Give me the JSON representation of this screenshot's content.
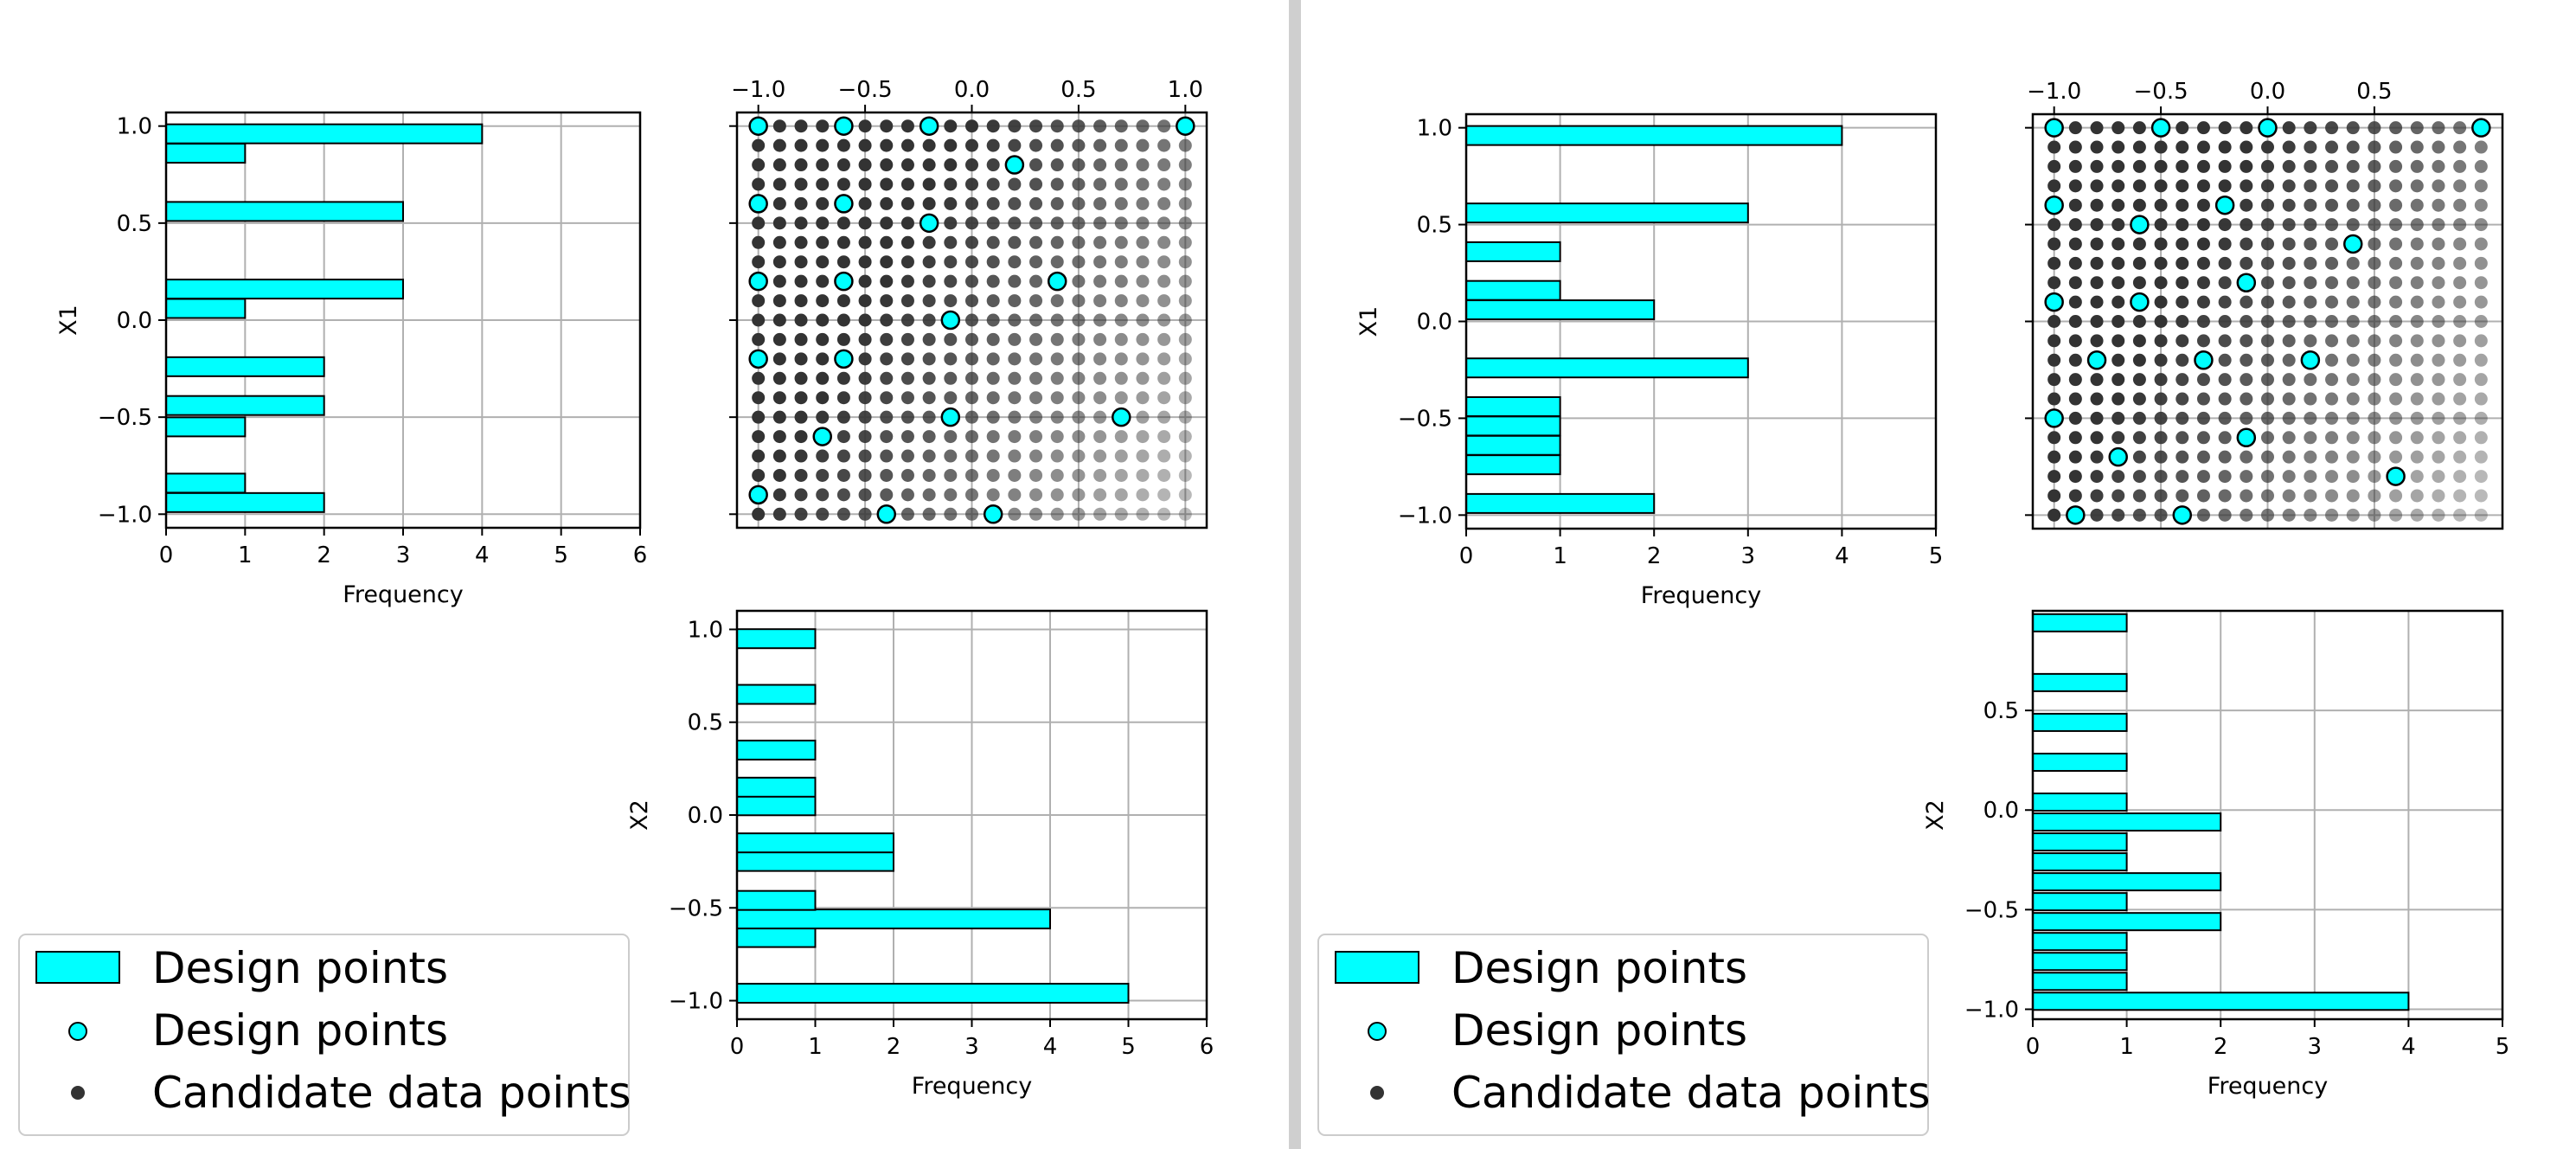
{
  "colors": {
    "design": "#00ffff",
    "candidate": "#333333",
    "grid": "#b0b0b0",
    "divider": "#cfcfcf"
  },
  "chart_data": [
    {
      "type": "bar",
      "orientation": "horizontal",
      "xlabel": "Frequency",
      "ylabel": "X1",
      "xlim": [
        0,
        6
      ],
      "ylim": [
        -1.07,
        1.07
      ],
      "xticks": [
        "0",
        "1",
        "2",
        "3",
        "4",
        "5",
        "6"
      ],
      "yticks": [
        "−1.0",
        "−0.5",
        "0.0",
        "0.5",
        "1.0"
      ],
      "bins": [
        {
          "y": -0.94,
          "value": 2
        },
        {
          "y": -0.84,
          "value": 1
        },
        {
          "y": -0.55,
          "value": 1
        },
        {
          "y": -0.44,
          "value": 2
        },
        {
          "y": -0.24,
          "value": 2
        },
        {
          "y": 0.06,
          "value": 1
        },
        {
          "y": 0.16,
          "value": 3
        },
        {
          "y": 0.56,
          "value": 3
        },
        {
          "y": 0.86,
          "value": 1
        },
        {
          "y": 0.96,
          "value": 4
        }
      ]
    },
    {
      "type": "scatter",
      "xticks": [
        "−1.0",
        "−0.5",
        "0.0",
        "0.5",
        "1.0"
      ],
      "xlim": [
        -1.1,
        1.1
      ],
      "ylim": [
        -1.07,
        1.07
      ],
      "design_points": [
        {
          "x": -1.0,
          "y": 1.0
        },
        {
          "x": -0.6,
          "y": 1.0
        },
        {
          "x": -0.2,
          "y": 1.0
        },
        {
          "x": 1.0,
          "y": 1.0
        },
        {
          "x": 0.2,
          "y": 0.8
        },
        {
          "x": -1.0,
          "y": 0.6
        },
        {
          "x": -0.6,
          "y": 0.6
        },
        {
          "x": -0.2,
          "y": 0.5
        },
        {
          "x": -1.0,
          "y": 0.2
        },
        {
          "x": -0.6,
          "y": 0.2
        },
        {
          "x": 0.4,
          "y": 0.2
        },
        {
          "x": -0.1,
          "y": 0.0
        },
        {
          "x": -1.0,
          "y": -0.2
        },
        {
          "x": -0.6,
          "y": -0.2
        },
        {
          "x": -0.1,
          "y": -0.5
        },
        {
          "x": 0.7,
          "y": -0.5
        },
        {
          "x": -0.7,
          "y": -0.6
        },
        {
          "x": -1.0,
          "y": -0.9
        },
        {
          "x": -0.4,
          "y": -1.0
        },
        {
          "x": 0.1,
          "y": -1.0
        }
      ],
      "candidate_grid": {
        "x_from": -1.0,
        "x_to": 1.0,
        "y_from": -1.0,
        "y_to": 1.0,
        "step": 0.1
      }
    },
    {
      "type": "bar",
      "orientation": "horizontal",
      "xlabel": "Frequency",
      "ylabel": "X2",
      "xlim": [
        0,
        6
      ],
      "ylim": [
        -1.1,
        1.1
      ],
      "xticks": [
        "0",
        "1",
        "2",
        "3",
        "4",
        "5",
        "6"
      ],
      "yticks": [
        "−1.0",
        "−0.5",
        "0.0",
        "0.5",
        "1.0"
      ],
      "bins": [
        {
          "y": -0.96,
          "value": 5
        },
        {
          "y": -0.66,
          "value": 1
        },
        {
          "y": -0.56,
          "value": 4
        },
        {
          "y": -0.46,
          "value": 1
        },
        {
          "y": -0.25,
          "value": 2
        },
        {
          "y": -0.15,
          "value": 2
        },
        {
          "y": 0.05,
          "value": 1
        },
        {
          "y": 0.15,
          "value": 1
        },
        {
          "y": 0.35,
          "value": 1
        },
        {
          "y": 0.65,
          "value": 1
        },
        {
          "y": 0.95,
          "value": 1
        }
      ]
    },
    {
      "type": "bar",
      "orientation": "horizontal",
      "xlabel": "Frequency",
      "ylabel": "X1",
      "xlim": [
        0,
        5
      ],
      "ylim": [
        -1.07,
        1.07
      ],
      "xticks": [
        "0",
        "1",
        "2",
        "3",
        "4",
        "5"
      ],
      "yticks": [
        "−1.0",
        "−0.5",
        "0.0",
        "0.5",
        "1.0"
      ],
      "bins": [
        {
          "y": -0.94,
          "value": 2
        },
        {
          "y": -0.74,
          "value": 1
        },
        {
          "y": -0.64,
          "value": 1
        },
        {
          "y": -0.54,
          "value": 1
        },
        {
          "y": -0.44,
          "value": 1
        },
        {
          "y": -0.24,
          "value": 3
        },
        {
          "y": 0.06,
          "value": 2
        },
        {
          "y": 0.16,
          "value": 1
        },
        {
          "y": 0.36,
          "value": 1
        },
        {
          "y": 0.56,
          "value": 3
        },
        {
          "y": 0.96,
          "value": 4
        }
      ]
    },
    {
      "type": "scatter",
      "xticks": [
        "−1.0",
        "−0.5",
        "0.0",
        "0.5"
      ],
      "xlim": [
        -1.1,
        1.1
      ],
      "ylim": [
        -1.07,
        1.07
      ],
      "design_points": [
        {
          "x": -1.0,
          "y": 1.0
        },
        {
          "x": -0.5,
          "y": 1.0
        },
        {
          "x": 0.0,
          "y": 1.0
        },
        {
          "x": 1.0,
          "y": 1.0
        },
        {
          "x": -1.0,
          "y": 0.6
        },
        {
          "x": -0.6,
          "y": 0.5
        },
        {
          "x": -0.2,
          "y": 0.6
        },
        {
          "x": 0.4,
          "y": 0.4
        },
        {
          "x": -1.0,
          "y": 0.1
        },
        {
          "x": -0.6,
          "y": 0.1
        },
        {
          "x": -0.1,
          "y": 0.2
        },
        {
          "x": -0.8,
          "y": -0.2
        },
        {
          "x": -0.3,
          "y": -0.2
        },
        {
          "x": 0.2,
          "y": -0.2
        },
        {
          "x": -1.0,
          "y": -0.5
        },
        {
          "x": -0.1,
          "y": -0.6
        },
        {
          "x": -0.7,
          "y": -0.7
        },
        {
          "x": 0.6,
          "y": -0.8
        },
        {
          "x": -0.9,
          "y": -1.0
        },
        {
          "x": -0.4,
          "y": -1.0
        }
      ],
      "candidate_grid": {
        "x_from": -1.0,
        "x_to": 1.0,
        "y_from": -1.0,
        "y_to": 1.0,
        "step": 0.1
      }
    },
    {
      "type": "bar",
      "orientation": "horizontal",
      "xlabel": "Frequency",
      "ylabel": "X2",
      "xlim": [
        0,
        5
      ],
      "ylim": [
        -1.05,
        1.0
      ],
      "xticks": [
        "0",
        "1",
        "2",
        "3",
        "4",
        "5"
      ],
      "yticks": [
        "−1.0",
        "−0.5",
        "0.0",
        "0.5"
      ],
      "bins": [
        {
          "y": -0.96,
          "value": 4
        },
        {
          "y": -0.86,
          "value": 1
        },
        {
          "y": -0.76,
          "value": 1
        },
        {
          "y": -0.66,
          "value": 1
        },
        {
          "y": -0.56,
          "value": 2
        },
        {
          "y": -0.46,
          "value": 1
        },
        {
          "y": -0.36,
          "value": 2
        },
        {
          "y": -0.26,
          "value": 1
        },
        {
          "y": -0.16,
          "value": 1
        },
        {
          "y": -0.06,
          "value": 2
        },
        {
          "y": 0.04,
          "value": 1
        },
        {
          "y": 0.24,
          "value": 1
        },
        {
          "y": 0.44,
          "value": 1
        },
        {
          "y": 0.64,
          "value": 1
        },
        {
          "y": 0.94,
          "value": 1
        }
      ]
    }
  ],
  "legends": [
    {
      "items": [
        {
          "kind": "patch",
          "label": "Design points"
        },
        {
          "kind": "marker",
          "label": "Design points"
        },
        {
          "kind": "dot",
          "label": "Candidate data points"
        }
      ]
    },
    {
      "items": [
        {
          "kind": "patch",
          "label": "Design points"
        },
        {
          "kind": "marker",
          "label": "Design points"
        },
        {
          "kind": "dot",
          "label": "Candidate data points"
        }
      ]
    }
  ]
}
